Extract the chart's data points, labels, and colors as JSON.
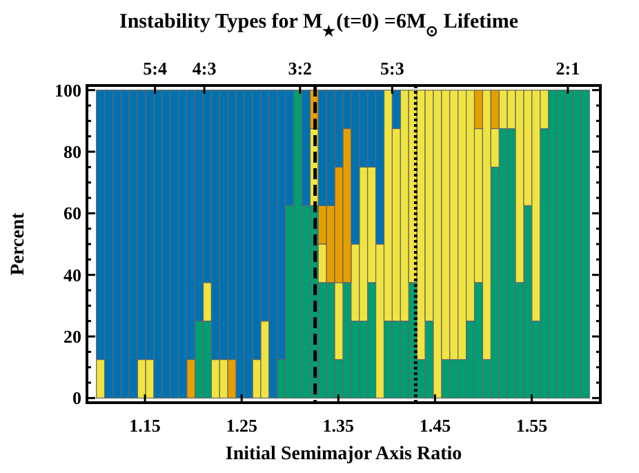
{
  "chart_data": {
    "type": "bar",
    "title": "Instability Types for M$_{★}$(t=0) =6M$_{⊙}$ Lifetime",
    "xlabel": "Initial Semimajor Axis Ratio",
    "ylabel": "Percent",
    "stacked": true,
    "x": [
      1.104,
      1.1125,
      1.121,
      1.1295,
      1.138,
      1.1465,
      1.155,
      1.1635,
      1.172,
      1.1805,
      1.189,
      1.1975,
      1.206,
      1.2145,
      1.223,
      1.2315,
      1.24,
      1.2485,
      1.257,
      1.2655,
      1.274,
      1.2825,
      1.291,
      1.2995,
      1.308,
      1.3165,
      1.325,
      1.3335,
      1.342,
      1.3505,
      1.359,
      1.3675,
      1.376,
      1.3845,
      1.393,
      1.4015,
      1.41,
      1.4185,
      1.427,
      1.4355,
      1.444,
      1.4525,
      1.461,
      1.4695,
      1.478,
      1.4865,
      1.495,
      1.5035,
      1.512,
      1.5205,
      1.529,
      1.5375,
      1.546,
      1.5545,
      1.563,
      1.5715,
      1.58,
      1.5885,
      1.597,
      1.6055
    ],
    "series": [
      {
        "color": "#009e73",
        "values": [
          0,
          0,
          0,
          0,
          0,
          0,
          0,
          0,
          0,
          0,
          0,
          0,
          25,
          25,
          0,
          0,
          0,
          0,
          0,
          0,
          0,
          0,
          12.5,
          62.5,
          100,
          62.5,
          62.5,
          37.5,
          37.5,
          12.5,
          37.5,
          25,
          25,
          37.5,
          0,
          25,
          25,
          25,
          37.5,
          12.5,
          25,
          0,
          12.5,
          12.5,
          12.5,
          25,
          37.5,
          12.5,
          75,
          87.5,
          87.5,
          37.5,
          62.5,
          25,
          87.5,
          100,
          100,
          100,
          100,
          100
        ]
      },
      {
        "color": "#f0e442",
        "values": [
          12.5,
          0,
          0,
          0,
          0,
          12.5,
          12.5,
          0,
          0,
          0,
          0,
          0,
          0,
          12.5,
          12.5,
          12.5,
          0,
          0,
          0,
          12.5,
          25,
          0,
          0,
          0,
          0,
          0,
          25,
          12.5,
          0,
          25,
          0,
          25,
          50,
          37.5,
          50,
          75,
          62.5,
          75,
          62.5,
          87.5,
          75,
          100,
          87.5,
          87.5,
          87.5,
          75,
          50,
          87.5,
          12.5,
          12.5,
          12.5,
          62.5,
          37.5,
          75,
          12.5,
          0,
          0,
          0,
          0,
          0
        ]
      },
      {
        "color": "#e69f00",
        "values": [
          0,
          0,
          0,
          0,
          0,
          0,
          0,
          0,
          0,
          0,
          0,
          12.5,
          0,
          0,
          0,
          0,
          12.5,
          0,
          0,
          0,
          0,
          0,
          0,
          0,
          0,
          0,
          12.5,
          12.5,
          25,
          37.5,
          50,
          0,
          0,
          0,
          0,
          0,
          0,
          0,
          0,
          0,
          0,
          0,
          0,
          0,
          0,
          0,
          12.5,
          0,
          12.5,
          0,
          0,
          0,
          0,
          0,
          0,
          0,
          0,
          0,
          0,
          0
        ]
      },
      {
        "color": "#0072b2",
        "values": [
          87.5,
          100,
          100,
          100,
          100,
          87.5,
          87.5,
          100,
          100,
          100,
          100,
          87.5,
          75,
          62.5,
          87.5,
          87.5,
          87.5,
          100,
          100,
          87.5,
          75,
          100,
          87.5,
          37.5,
          0,
          37.5,
          0,
          37.5,
          37.5,
          25,
          12.5,
          50,
          25,
          25,
          50,
          0,
          12.5,
          0,
          0,
          0,
          0,
          0,
          0,
          0,
          0,
          0,
          0,
          0,
          0,
          0,
          0,
          0,
          0,
          0,
          0,
          0,
          0,
          0,
          0,
          0
        ]
      }
    ],
    "xlim": [
      1.09,
      1.621
    ],
    "xticks": [
      1.15,
      1.25,
      1.35,
      1.45,
      1.55
    ],
    "annotations": [
      {
        "text": "5:4",
        "x": 1.1604
      },
      {
        "text": "4:3",
        "x": 1.2114
      },
      {
        "text": "3:2",
        "x": 1.3104
      },
      {
        "text": "5:3",
        "x": 1.4057
      },
      {
        "text": "2:1",
        "x": 1.5874
      }
    ],
    "ylim": [
      -1.5,
      101.5
    ],
    "yticks": [
      0,
      {
        "value": 5,
        "label": null
      },
      {
        "value": 10,
        "label": null
      },
      {
        "value": 15,
        "label": null
      },
      20,
      {
        "value": 25,
        "label": null
      },
      {
        "value": 30,
        "label": null
      },
      {
        "value": 35,
        "label": null
      },
      40,
      {
        "value": 45,
        "label": null
      },
      {
        "value": 50,
        "label": null
      },
      {
        "value": 55,
        "label": null
      },
      60,
      {
        "value": 65,
        "label": null
      },
      {
        "value": 70,
        "label": null
      },
      {
        "value": 75,
        "label": null
      },
      80,
      {
        "value": 85,
        "label": null
      },
      {
        "value": 90,
        "label": null
      },
      {
        "value": 95,
        "label": null
      },
      100
    ],
    "ref_lines": [
      {
        "axis": "x",
        "value": 1.326,
        "color": "#000000",
        "line_style": "dashed"
      },
      {
        "axis": "x",
        "value": 1.43,
        "color": "#000000",
        "line_style": "dotted"
      }
    ]
  }
}
